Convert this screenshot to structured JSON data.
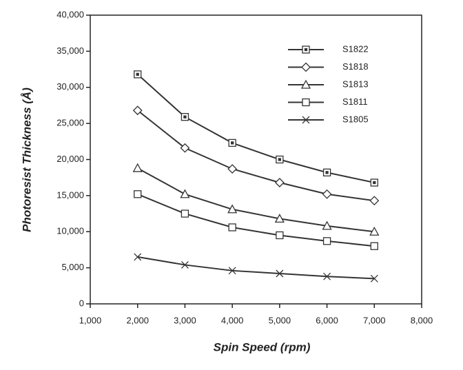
{
  "chart_data": {
    "type": "line",
    "x_label": "Spin Speed (rpm)",
    "y_label": "Photoresist Thickness (Å)",
    "x": [
      2000,
      3000,
      4000,
      5000,
      6000,
      7000
    ],
    "series": [
      {
        "name": "S1822",
        "color": "#333333",
        "marker": "square-dot",
        "values": [
          31800,
          25900,
          22300,
          20000,
          18200,
          16800
        ]
      },
      {
        "name": "S1818",
        "color": "#333333",
        "marker": "diamond",
        "values": [
          26800,
          21600,
          18700,
          16800,
          15200,
          14300
        ]
      },
      {
        "name": "S1813",
        "color": "#333333",
        "marker": "triangle",
        "values": [
          18800,
          15200,
          13100,
          11800,
          10800,
          10000
        ]
      },
      {
        "name": "S1811",
        "color": "#333333",
        "marker": "square",
        "values": [
          15200,
          12500,
          10600,
          9500,
          8700,
          8000
        ]
      },
      {
        "name": "S1805",
        "color": "#333333",
        "marker": "x",
        "values": [
          6500,
          5400,
          4600,
          4200,
          3800,
          3500
        ]
      }
    ],
    "xlim": [
      1000,
      8000
    ],
    "xticks": [
      {
        "value": 1000,
        "label": "1,000"
      },
      {
        "value": 2000,
        "label": "2,000"
      },
      {
        "value": 3000,
        "label": "3,000"
      },
      {
        "value": 4000,
        "label": "4,000"
      },
      {
        "value": 5000,
        "label": "5,000"
      },
      {
        "value": 6000,
        "label": "6,000"
      },
      {
        "value": 7000,
        "label": "7,000"
      },
      {
        "value": 8000,
        "label": "8,000"
      }
    ],
    "ylim": [
      0,
      40000
    ],
    "yticks": [
      0,
      {
        "value": 5000,
        "label": "5,000"
      },
      {
        "value": 10000,
        "label": "10,000"
      },
      {
        "value": 15000,
        "label": "15,000"
      },
      {
        "value": 20000,
        "label": "20,000"
      },
      {
        "value": 25000,
        "label": "25,000"
      },
      {
        "value": 30000,
        "label": "30,000"
      },
      {
        "value": 35000,
        "label": "35,000"
      },
      {
        "value": 40000,
        "label": "40,000"
      }
    ],
    "grid": false,
    "legend": "upper right"
  }
}
